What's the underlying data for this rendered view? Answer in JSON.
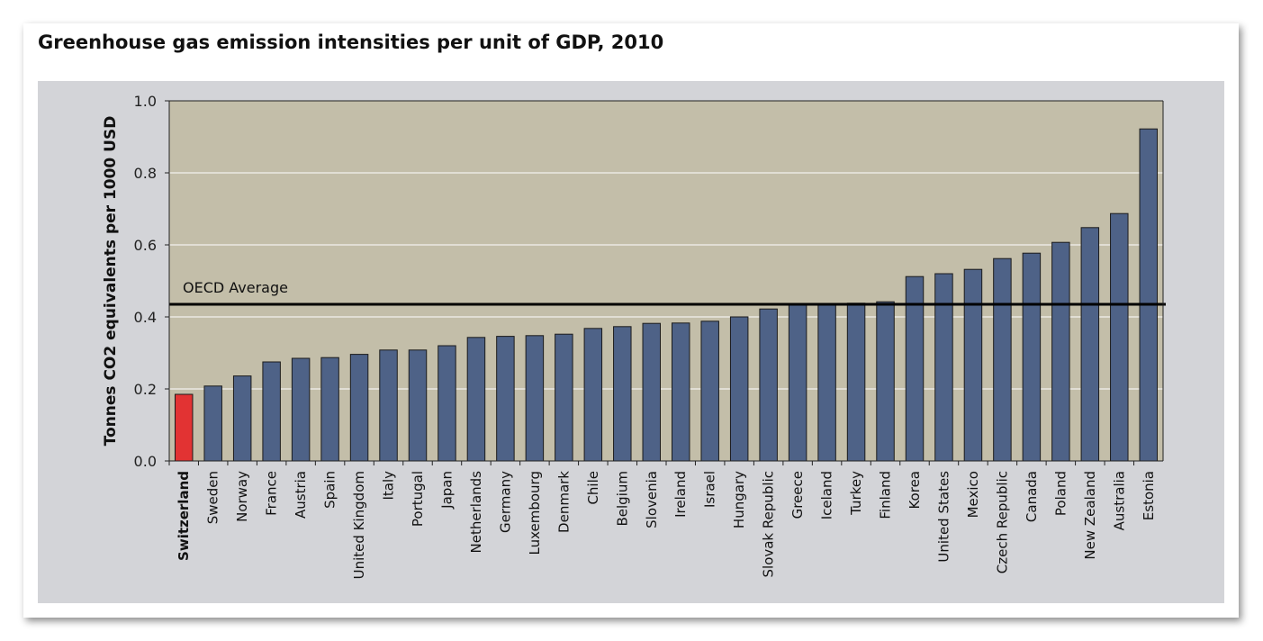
{
  "chart_data": {
    "type": "bar",
    "title": "Greenhouse gas emission intensities per unit of GDP, 2010",
    "xlabel": "",
    "ylabel": "Tonnes CO2 equivalents per 1000 USD",
    "ylim": [
      0,
      1.0
    ],
    "yticks": [
      "0.0",
      "0.2",
      "0.4",
      "0.6",
      "0.8",
      "1.0"
    ],
    "grid": true,
    "highlight": "Switzerland",
    "colors": {
      "bar": "#4e6287",
      "highlight": "#e23333",
      "plot_bg": "#c3bea9",
      "panel_bg": "#d3d4d8"
    },
    "reference_line": {
      "label": "OECD Average",
      "value": 0.435
    },
    "categories": [
      "Switzerland",
      "Sweden",
      "Norway",
      "France",
      "Austria",
      "Spain",
      "United Kingdom",
      "Italy",
      "Portugal",
      "Japan",
      "Netherlands",
      "Germany",
      "Luxembourg",
      "Denmark",
      "Chile",
      "Belgium",
      "Slovenia",
      "Ireland",
      "Israel",
      "Hungary",
      "Slovak Republic",
      "Greece",
      "Iceland",
      "Turkey",
      "Finland",
      "Korea",
      "United States",
      "Mexico",
      "Czech Republic",
      "Canada",
      "Poland",
      "New Zealand",
      "Australia",
      "Estonia"
    ],
    "values": [
      0.185,
      0.208,
      0.236,
      0.275,
      0.285,
      0.287,
      0.296,
      0.308,
      0.308,
      0.32,
      0.343,
      0.346,
      0.348,
      0.352,
      0.368,
      0.373,
      0.382,
      0.383,
      0.388,
      0.4,
      0.422,
      0.435,
      0.435,
      0.438,
      0.442,
      0.512,
      0.52,
      0.532,
      0.562,
      0.577,
      0.607,
      0.648,
      0.687,
      0.922
    ]
  }
}
